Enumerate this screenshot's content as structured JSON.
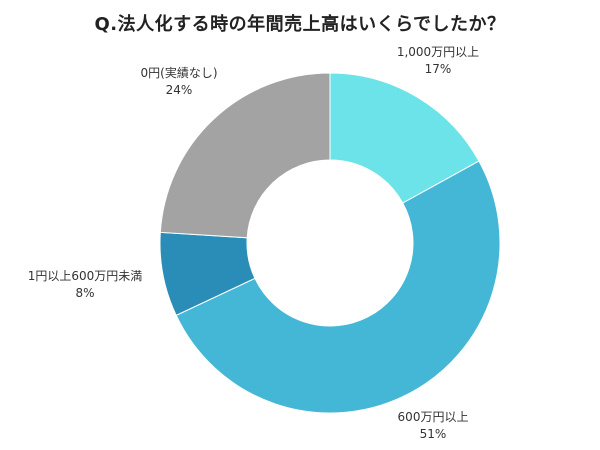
{
  "chart_data": {
    "type": "pie",
    "variant": "donut",
    "title": "Q.法人化する時の年間売上高はいくらでしたか？",
    "slices": [
      {
        "label": "1,000万円以上",
        "value": 17,
        "value_label": "17%",
        "color": "#6ce3e8"
      },
      {
        "label": "600万円以上",
        "value": 51,
        "value_label": "51%",
        "color": "#44b6d6"
      },
      {
        "label": "1円以上600万円未満",
        "value": 8,
        "value_label": "8%",
        "color": "#2a8db7"
      },
      {
        "label": "0円(実績なし)",
        "value": 24,
        "value_label": "24%",
        "color": "#a3a3a3"
      }
    ],
    "start": "12 o'clock",
    "direction": "clockwise",
    "legend": "none"
  }
}
